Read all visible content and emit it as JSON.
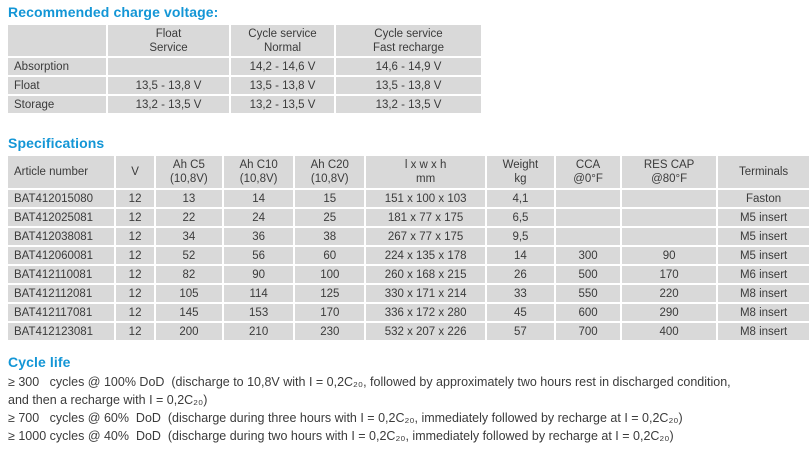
{
  "colors": {
    "heading_blue": "#1396d6",
    "cell_bg": "#d9d9d9",
    "text_dark": "#3b3b3b"
  },
  "headings": {
    "charge_voltage": "Recommended charge voltage:",
    "specifications": "Specifications",
    "cycle_life": "Cycle life"
  },
  "charge_voltage_table": {
    "columns": [
      "",
      "Float\nService",
      "Cycle service\nNormal",
      "Cycle service\nFast recharge"
    ],
    "rows": [
      [
        "Absorption",
        "",
        "14,2 - 14,6 V",
        "14,6 - 14,9 V"
      ],
      [
        "Float",
        "13,5 - 13,8 V",
        "13,5 - 13,8 V",
        "13,5 - 13,8 V"
      ],
      [
        "Storage",
        "13,2 - 13,5 V",
        "13,2 - 13,5 V",
        "13,2 - 13,5 V"
      ]
    ]
  },
  "specifications_table": {
    "columns": [
      "Article number",
      "V",
      "Ah C5\n(10,8V)",
      "Ah C10\n(10,8V)",
      "Ah C20\n(10,8V)",
      "l x w x h\nmm",
      "Weight\nkg",
      "CCA\n@0°F",
      "RES CAP\n@80°F",
      "Terminals"
    ],
    "rows": [
      [
        "BAT412015080",
        "12",
        "13",
        "14",
        "15",
        "151 x 100 x 103",
        "4,1",
        "",
        "",
        "Faston"
      ],
      [
        "BAT412025081",
        "12",
        "22",
        "24",
        "25",
        "181 x 77 x 175",
        "6,5",
        "",
        "",
        "M5 insert"
      ],
      [
        "BAT412038081",
        "12",
        "34",
        "36",
        "38",
        "267 x 77 x 175",
        "9,5",
        "",
        "",
        "M5 insert"
      ],
      [
        "BAT412060081",
        "12",
        "52",
        "56",
        "60",
        "224 x 135 x 178",
        "14",
        "300",
        "90",
        "M5 insert"
      ],
      [
        "BAT412110081",
        "12",
        "82",
        "90",
        "100",
        "260 x 168 x 215",
        "26",
        "500",
        "170",
        "M6 insert"
      ],
      [
        "BAT412112081",
        "12",
        "105",
        "114",
        "125",
        "330 x 171 x 214",
        "33",
        "550",
        "220",
        "M8 insert"
      ],
      [
        "BAT412117081",
        "12",
        "145",
        "153",
        "170",
        "336 x 172 x 280",
        "45",
        "600",
        "290",
        "M8 insert"
      ],
      [
        "BAT412123081",
        "12",
        "200",
        "210",
        "230",
        "532 x 207 x 226",
        "57",
        "700",
        "400",
        "M8 insert"
      ]
    ]
  },
  "cycle_life": {
    "lines": [
      "≥ 300   cycles @ 100% DoD  (discharge to 10,8V with I = 0,2C₂₀, followed by approximately two hours rest in discharged condition,",
      "and then a recharge with I = 0,2C₂₀)",
      "≥ 700   cycles @ 60%  DoD  (discharge during three hours with I = 0,2C₂₀, immediately followed by recharge at I = 0,2C₂₀)",
      "≥ 1000 cycles @ 40%  DoD  (discharge during two hours with I = 0,2C₂₀, immediately followed by recharge at I = 0,2C₂₀)"
    ]
  }
}
